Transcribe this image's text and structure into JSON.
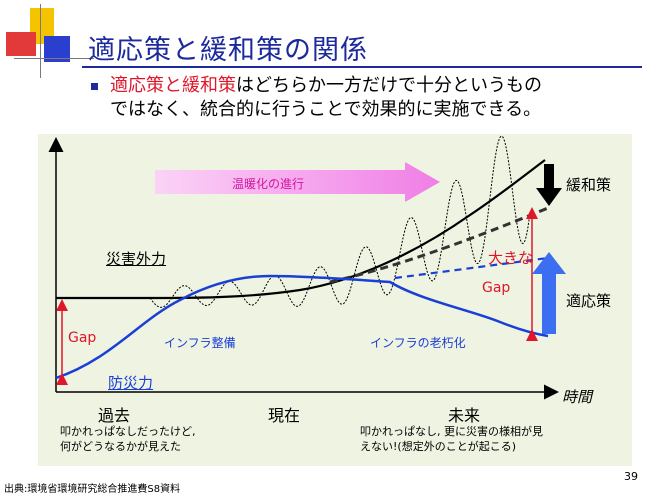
{
  "slide": {
    "title": "適応策と緩和策の関係",
    "bullet": {
      "highlight": "適応策と緩和策",
      "rest_line1": "はどちらか一方だけで十分というもの",
      "line2": "ではなく、統合的に行うことで効果的に実施できる。"
    },
    "page_number": "39",
    "source": "出典:環境省環境研究総合推進費S8資料"
  },
  "diagram": {
    "warming_arrow_label": "温暖化の進行",
    "hazard_label": "災害外力",
    "prevention_label": "防災力",
    "gap_label_left": "Gap",
    "big_gap_label": "大きな",
    "big_gap_label2": "Gap",
    "mitigation_label": "緩和策",
    "adaptation_label": "適応策",
    "infra_build_label": "インフラ整備",
    "infra_aging_label": "インフラの老朽化",
    "time_axis_label": "時間",
    "past_label": "過去",
    "present_label": "現在",
    "future_label": "未来",
    "past_note_line1": "叩かれっぱなしだったけど,",
    "past_note_line2": "何がどうなるかが見えた",
    "future_note_line1": "叩かれっぱなし, 更に災害の様相が見",
    "future_note_line2": "えない!(想定外のことが起こる)",
    "colors": {
      "hazard_curve": "#000000",
      "prevention_curve": "#1a3fd6",
      "gap_arrow": "#e0162a",
      "warming_arrow": "#f5a6f0",
      "adaptation_arrow": "#3b6ef0",
      "mitigation_arrow": "#000000",
      "panel_bg": "#eef3e2"
    }
  }
}
